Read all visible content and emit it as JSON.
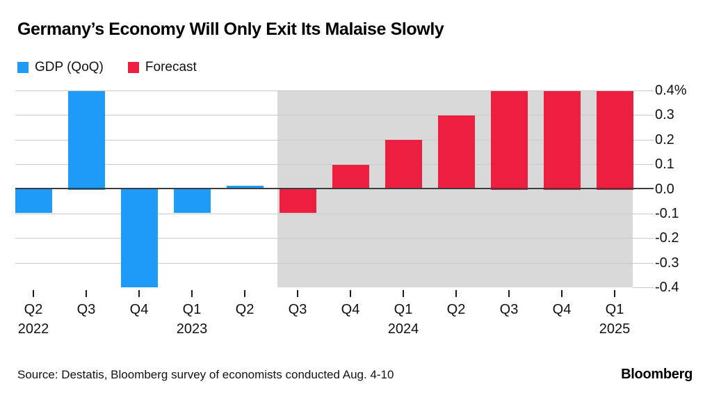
{
  "title": "Germany’s Economy Will Only Exit Its Malaise Slowly",
  "legend": [
    {
      "label": "GDP (QoQ)",
      "color": "#1e9bf7"
    },
    {
      "label": "Forecast",
      "color": "#ed1f40"
    }
  ],
  "source": "Source: Destatis, Bloomberg survey of economists conducted Aug. 4-10",
  "brand": "Bloomberg",
  "colors": {
    "actual": "#1e9bf7",
    "forecast": "#ed1f40",
    "forecast_band": "#d9d9d9",
    "gridline": "#c9c9c9",
    "zero_line": "#3d3d3d",
    "text": "#111111"
  },
  "chart_data": {
    "type": "bar",
    "title": "Germany’s Economy Will Only Exit Its Malaise Slowly",
    "unit": "%",
    "x": [
      {
        "q": "Q2",
        "year": "2022",
        "show_year": true
      },
      {
        "q": "Q3",
        "year": "2022",
        "show_year": false
      },
      {
        "q": "Q4",
        "year": "2022",
        "show_year": false
      },
      {
        "q": "Q1",
        "year": "2023",
        "show_year": true
      },
      {
        "q": "Q2",
        "year": "2023",
        "show_year": false
      },
      {
        "q": "Q3",
        "year": "2023",
        "show_year": false
      },
      {
        "q": "Q4",
        "year": "2023",
        "show_year": false
      },
      {
        "q": "Q1",
        "year": "2024",
        "show_year": true
      },
      {
        "q": "Q2",
        "year": "2024",
        "show_year": false
      },
      {
        "q": "Q3",
        "year": "2024",
        "show_year": false
      },
      {
        "q": "Q4",
        "year": "2024",
        "show_year": false
      },
      {
        "q": "Q1",
        "year": "2025",
        "show_year": true
      }
    ],
    "series": [
      {
        "name": "GDP (QoQ)",
        "color": "#1e9bf7",
        "values": [
          -0.1,
          0.4,
          -0.4,
          -0.1,
          0.0,
          null,
          null,
          null,
          null,
          null,
          null,
          null
        ]
      },
      {
        "name": "Forecast",
        "color": "#ed1f40",
        "values": [
          null,
          null,
          null,
          null,
          null,
          -0.1,
          0.1,
          0.2,
          0.3,
          0.4,
          0.4,
          0.4
        ]
      }
    ],
    "ylim": [
      -0.4,
      0.4
    ],
    "yticks": [
      "0.4%",
      "0.3",
      "0.2",
      "0.1",
      "0.0",
      "-0.1",
      "-0.2",
      "-0.3",
      "-0.4"
    ],
    "forecast_band_start_index": 5,
    "grid": true,
    "legend_position": "top-left"
  }
}
